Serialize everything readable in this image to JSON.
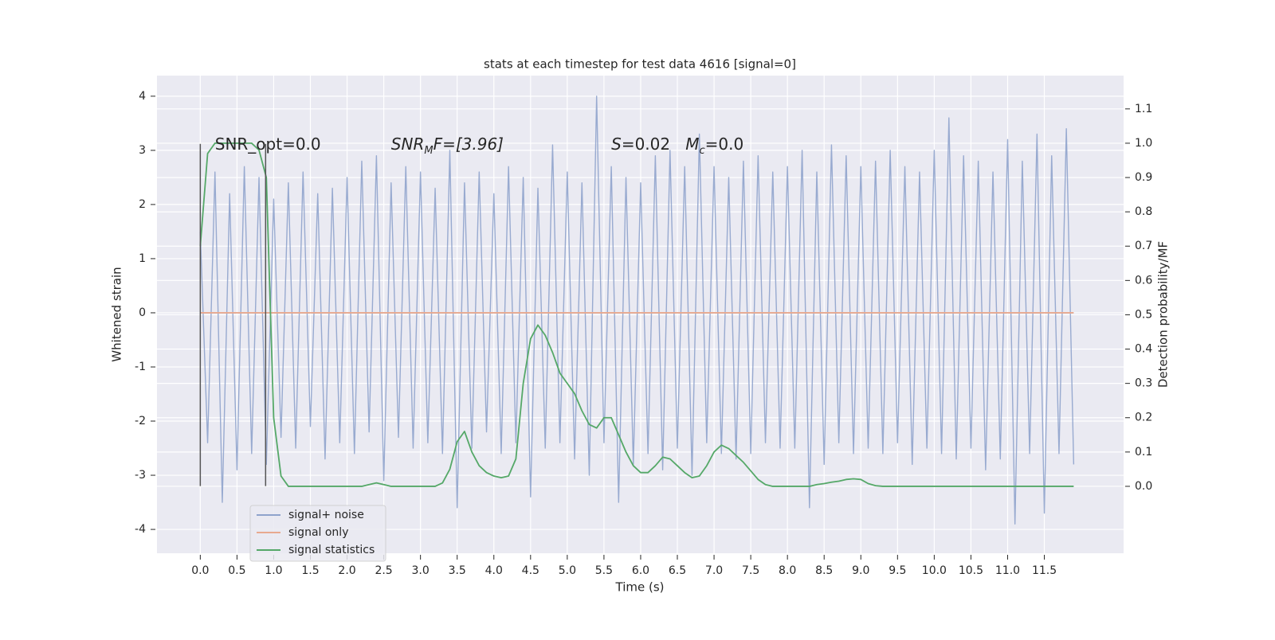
{
  "chart_data": {
    "type": "line",
    "title": "stats at each timestep for test data 4616 [signal=0]",
    "x_label": "Time (s)",
    "y_label": "Whitened strain",
    "y2_label": "Detection probability/MF",
    "xlim": [
      -0.59,
      12.58
    ],
    "ylim": [
      -4.44,
      4.38
    ],
    "y2lim": [
      -0.195,
      1.197
    ],
    "xticks": [
      {
        "value": 0,
        "label": "0.0"
      },
      0.5,
      {
        "value": 1,
        "label": "1.0"
      },
      1.5,
      {
        "value": 2,
        "label": "2.0"
      },
      2.5,
      {
        "value": 3,
        "label": "3.0"
      },
      3.5,
      {
        "value": 4,
        "label": "4.0"
      },
      4.5,
      {
        "value": 5,
        "label": "5.0"
      },
      5.5,
      {
        "value": 6,
        "label": "6.0"
      },
      6.5,
      {
        "value": 7,
        "label": "7.0"
      },
      7.5,
      {
        "value": 8,
        "label": "8.0"
      },
      8.5,
      {
        "value": 9,
        "label": "9.0"
      },
      9.5,
      {
        "value": 10,
        "label": "10.0"
      },
      10.5,
      {
        "value": 11,
        "label": "11.0"
      },
      11.5
    ],
    "yticks": [
      -4,
      -3,
      -2,
      -1,
      0,
      1,
      2,
      3,
      4
    ],
    "y2ticks": [
      {
        "value": 0,
        "label": "0.0"
      },
      0.1,
      0.2,
      0.3,
      0.4,
      0.5,
      0.6,
      0.7,
      0.8,
      0.9,
      {
        "value": 1,
        "label": "1.0"
      },
      1.1
    ],
    "grid": true,
    "legend": "lower left",
    "vlines": {
      "x": [
        0,
        0.89
      ],
      "ymin": -3.2,
      "ymax": 3.12,
      "color": "#555555"
    },
    "annotations": [
      {
        "parts": [
          "SNR_opt=0.0"
        ],
        "x": 0.2,
        "y": 3.1
      },
      {
        "parts": [
          "SNR",
          "M",
          "F=[3.96]"
        ],
        "x": 2.6,
        "y": 3.1
      },
      {
        "parts": [
          "S",
          "=0.02   ",
          "M",
          "c",
          "=0.0"
        ],
        "x": 5.6,
        "y": 3.1
      }
    ],
    "x": [
      0,
      0.1,
      0.2,
      0.3,
      0.4,
      0.5,
      0.6,
      0.7,
      0.8,
      0.9,
      1,
      1.1,
      1.2,
      1.3,
      1.4,
      1.5,
      1.6,
      1.7,
      1.8,
      1.9,
      2,
      2.1,
      2.2,
      2.3,
      2.4,
      2.5,
      2.6,
      2.7,
      2.8,
      2.9,
      3,
      3.1,
      3.2,
      3.3,
      3.4,
      3.5,
      3.6,
      3.7,
      3.8,
      3.9,
      4,
      4.1,
      4.2,
      4.3,
      4.4,
      4.5,
      4.6,
      4.7,
      4.8,
      4.9,
      5,
      5.1,
      5.2,
      5.3,
      5.4,
      5.5,
      5.6,
      5.7,
      5.8,
      5.9,
      6,
      6.1,
      6.2,
      6.3,
      6.4,
      6.5,
      6.6,
      6.7,
      6.8,
      6.9,
      7,
      7.1,
      7.2,
      7.3,
      7.4,
      7.5,
      7.6,
      7.7,
      7.8,
      7.9,
      8,
      8.1,
      8.2,
      8.3,
      8.4,
      8.5,
      8.6,
      8.7,
      8.8,
      8.9,
      9,
      9.1,
      9.2,
      9.3,
      9.4,
      9.5,
      9.6,
      9.7,
      9.8,
      9.9,
      10,
      10.1,
      10.2,
      10.3,
      10.4,
      10.5,
      10.6,
      10.7,
      10.8,
      10.9,
      11,
      11.1,
      11.2,
      11.3,
      11.4,
      11.5,
      11.6,
      11.7,
      11.8,
      11.9
    ],
    "series": [
      {
        "name": "signal+ noise",
        "color": "#8fa3cc",
        "values": [
          1.5,
          -2.4,
          2.6,
          -3.5,
          2.2,
          -2.9,
          2.7,
          -2.6,
          2.5,
          -2.8,
          2.1,
          -2.3,
          2.4,
          -2.5,
          2.6,
          -2.1,
          2.2,
          -2.7,
          2.3,
          -2.4,
          2.5,
          -2.6,
          2.8,
          -2.2,
          2.9,
          -3.1,
          2.4,
          -2.3,
          2.7,
          -2.5,
          2.6,
          -2.4,
          2.3,
          -2.6,
          3.0,
          -3.6,
          2.4,
          -2.5,
          2.6,
          -2.2,
          2.2,
          -2.6,
          2.7,
          -2.4,
          2.5,
          -3.4,
          2.3,
          -2.5,
          3.1,
          -2.4,
          2.6,
          -2.7,
          2.4,
          -3.0,
          4.0,
          -2.4,
          2.7,
          -3.5,
          2.5,
          -2.8,
          2.4,
          -2.6,
          2.9,
          -2.9,
          3.0,
          -2.5,
          2.7,
          -3.0,
          3.3,
          -2.4,
          2.7,
          -2.6,
          2.5,
          -2.7,
          2.8,
          -2.6,
          2.9,
          -2.4,
          2.6,
          -2.5,
          2.7,
          -2.5,
          3.0,
          -3.6,
          2.6,
          -2.8,
          3.1,
          -2.4,
          2.9,
          -2.6,
          2.7,
          -2.5,
          2.8,
          -2.6,
          3.0,
          -2.4,
          2.7,
          -2.8,
          2.6,
          -2.5,
          3.0,
          -2.6,
          3.6,
          -2.7,
          2.9,
          -2.5,
          2.8,
          -2.9,
          2.6,
          -2.7,
          3.2,
          -3.9,
          2.8,
          -2.6,
          3.3,
          -3.7,
          2.9,
          -2.6,
          3.4,
          -2.8
        ]
      },
      {
        "name": "signal only",
        "color": "#e8a98f",
        "values": [
          0,
          0,
          0,
          0,
          0,
          0,
          0,
          0,
          0,
          0,
          0,
          0,
          0,
          0,
          0,
          0,
          0,
          0,
          0,
          0,
          0,
          0,
          0,
          0,
          0,
          0,
          0,
          0,
          0,
          0,
          0,
          0,
          0,
          0,
          0,
          0,
          0,
          0,
          0,
          0,
          0,
          0,
          0,
          0,
          0,
          0,
          0,
          0,
          0,
          0,
          0,
          0,
          0,
          0,
          0,
          0,
          0,
          0,
          0,
          0,
          0,
          0,
          0,
          0,
          0,
          0,
          0,
          0,
          0,
          0,
          0,
          0,
          0,
          0,
          0,
          0,
          0,
          0,
          0,
          0,
          0,
          0,
          0,
          0,
          0,
          0,
          0,
          0,
          0,
          0,
          0,
          0,
          0,
          0,
          0,
          0,
          0,
          0,
          0,
          0,
          0,
          0,
          0,
          0,
          0,
          0,
          0,
          0,
          0,
          0,
          0,
          0,
          0,
          0,
          0,
          0,
          0,
          0,
          0,
          0
        ]
      },
      {
        "name": "signal statistics",
        "color": "#55a868",
        "axis": "y2",
        "values": [
          0.7,
          0.97,
          1.0,
          1.0,
          1.0,
          1.0,
          1.0,
          1.0,
          0.98,
          0.9,
          0.2,
          0.03,
          0.0,
          0.0,
          0.0,
          0.0,
          0.0,
          0.0,
          0.0,
          0.0,
          0.0,
          0.0,
          0.0,
          0.005,
          0.01,
          0.005,
          0.0,
          0.0,
          0.0,
          0.0,
          0.0,
          0.0,
          0.0,
          0.01,
          0.05,
          0.13,
          0.16,
          0.1,
          0.06,
          0.04,
          0.03,
          0.025,
          0.03,
          0.08,
          0.3,
          0.43,
          0.47,
          0.44,
          0.39,
          0.33,
          0.3,
          0.27,
          0.22,
          0.18,
          0.17,
          0.2,
          0.2,
          0.15,
          0.1,
          0.06,
          0.04,
          0.04,
          0.06,
          0.085,
          0.08,
          0.06,
          0.04,
          0.025,
          0.03,
          0.06,
          0.1,
          0.12,
          0.11,
          0.09,
          0.07,
          0.045,
          0.02,
          0.005,
          0.0,
          0.0,
          0.0,
          0.0,
          0.0,
          0.0,
          0.005,
          0.008,
          0.012,
          0.015,
          0.02,
          0.022,
          0.02,
          0.008,
          0.002,
          0.0,
          0.0,
          0.0,
          0.0,
          0.0,
          0.0,
          0.0,
          0.0,
          0.0,
          0.0,
          0.0,
          0.0,
          0.0,
          0.0,
          0.0,
          0.0,
          0.0,
          0.0,
          0.0,
          0.0,
          0.0,
          0.0,
          0.0,
          0.0,
          0.0,
          0.0,
          0.0
        ]
      }
    ]
  }
}
